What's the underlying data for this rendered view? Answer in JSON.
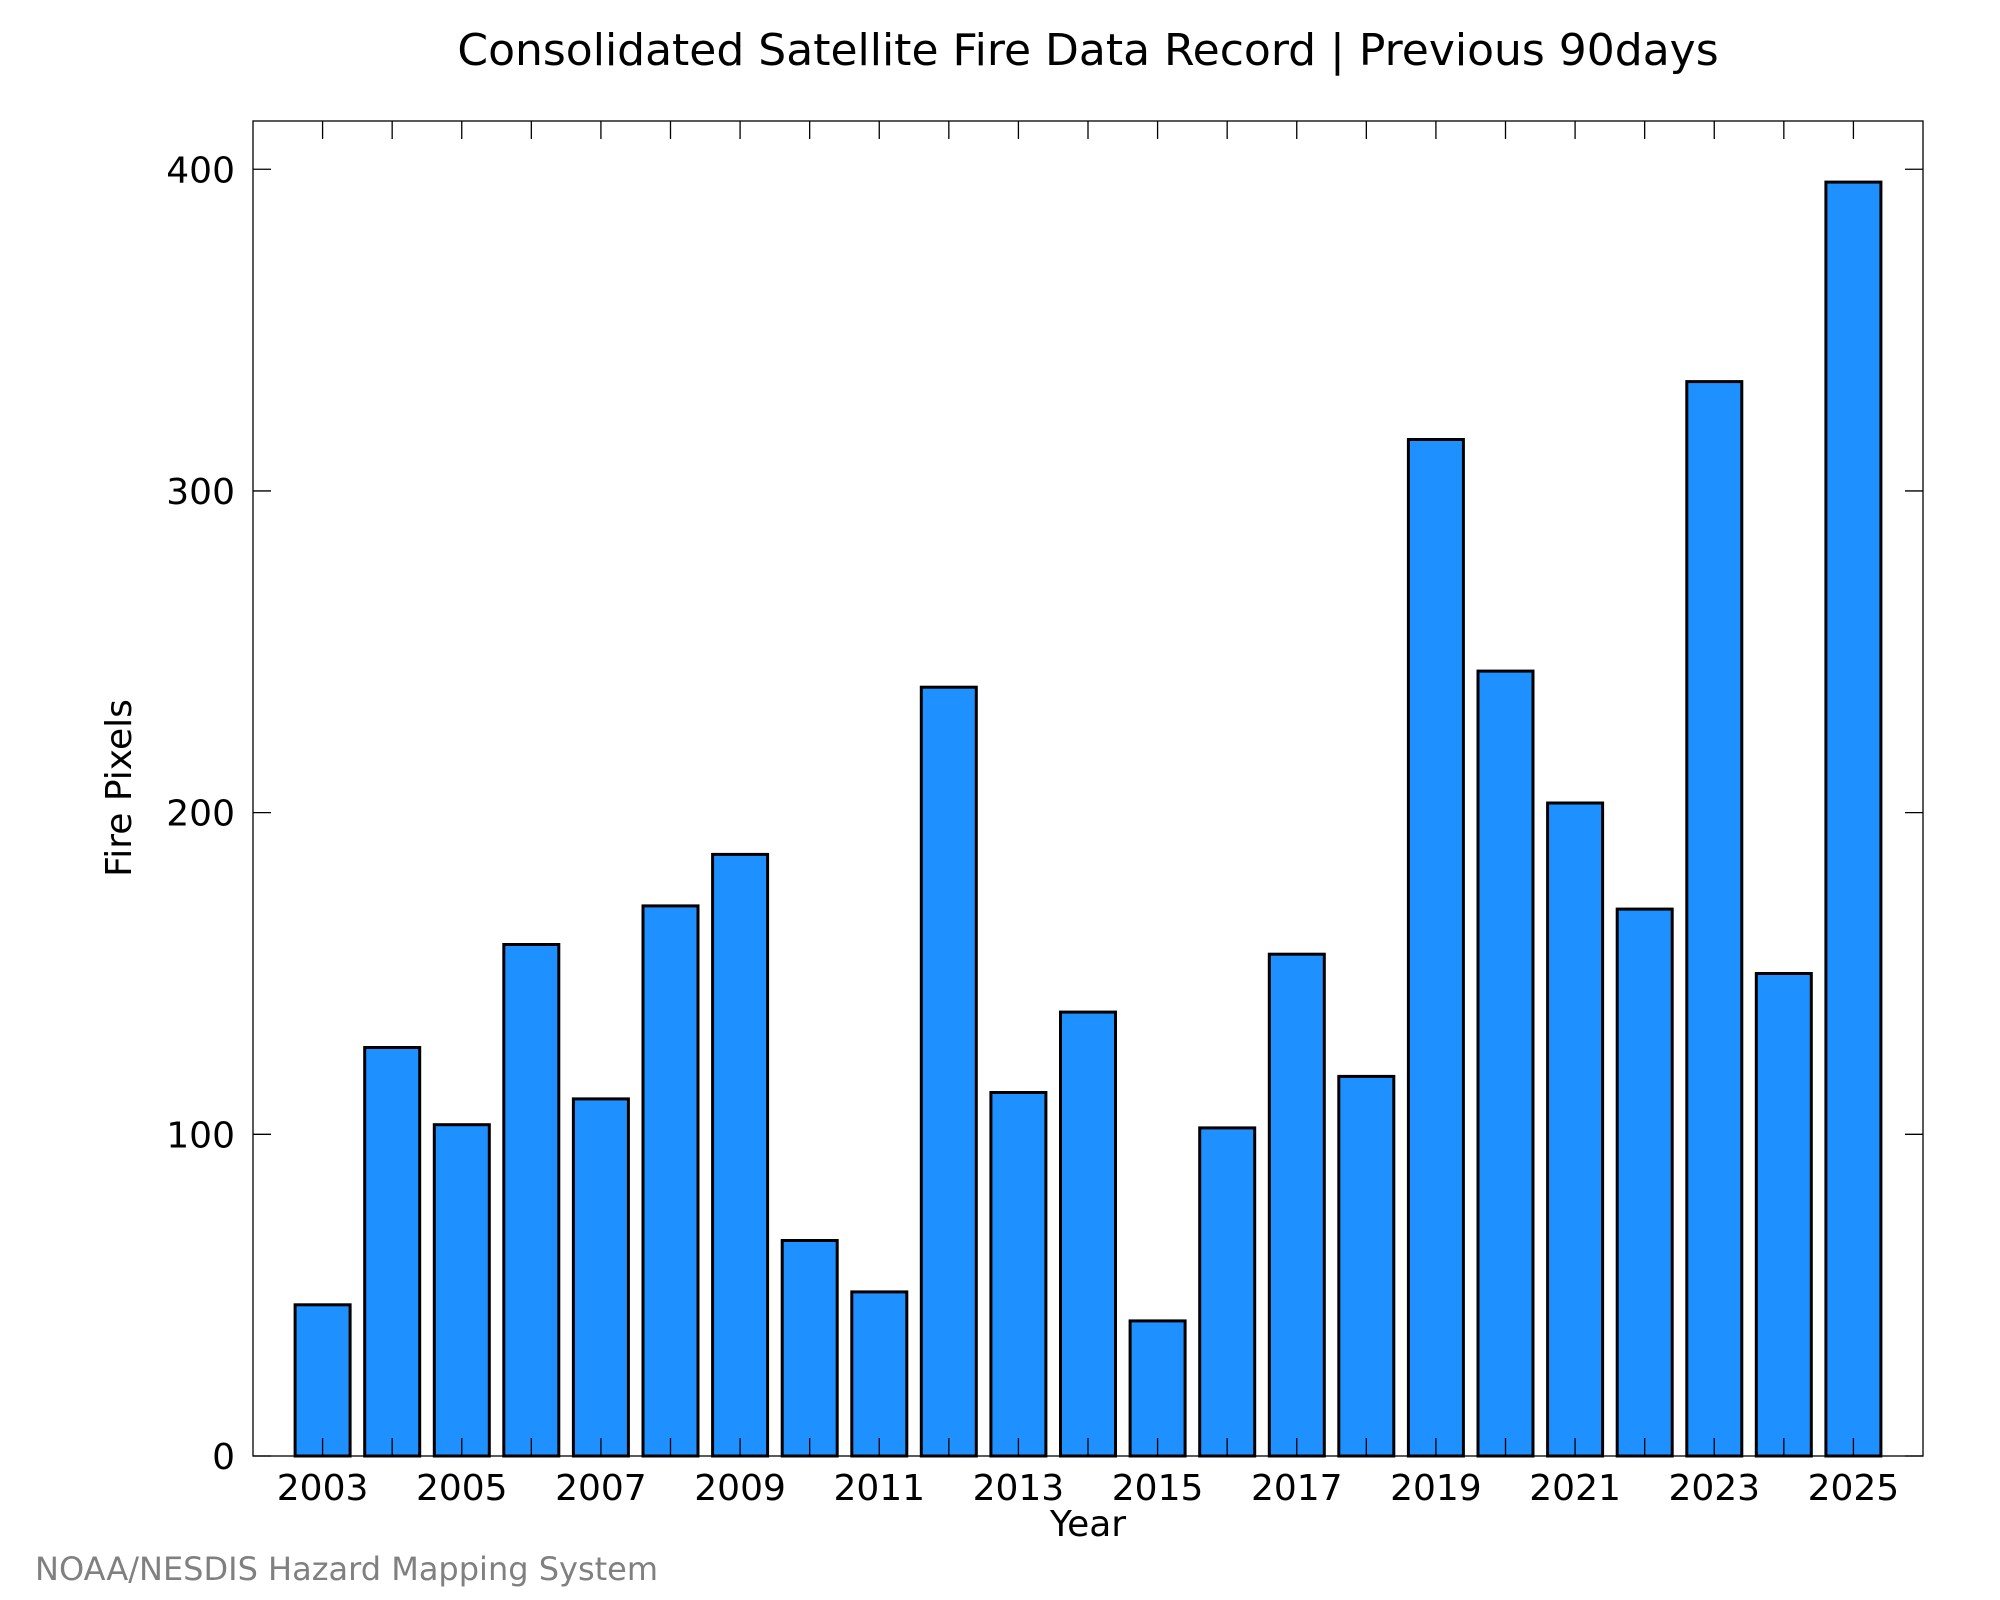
{
  "chart_data": {
    "type": "bar",
    "title": "Consolidated Satellite Fire Data Record | Previous 90days",
    "xlabel": "Year",
    "ylabel": "Fire Pixels",
    "categories": [
      "2003",
      "2004",
      "2005",
      "2006",
      "2007",
      "2008",
      "2009",
      "2010",
      "2011",
      "2012",
      "2013",
      "2014",
      "2015",
      "2016",
      "2017",
      "2018",
      "2019",
      "2020",
      "2021",
      "2022",
      "2023",
      "2024",
      "2025"
    ],
    "values": [
      47,
      127,
      103,
      159,
      111,
      171,
      187,
      67,
      51,
      239,
      113,
      138,
      42,
      102,
      156,
      118,
      316,
      244,
      203,
      170,
      334,
      150,
      396
    ],
    "ylim": [
      0,
      415
    ],
    "xlim": [
      2002,
      2026
    ],
    "yticks": [
      "0",
      "100",
      "200",
      "300",
      "400"
    ],
    "xticks": [
      "2003",
      "2005",
      "2007",
      "2009",
      "2011",
      "2013",
      "2015",
      "2017",
      "2019",
      "2021",
      "2023",
      "2025"
    ],
    "bar_color": "#1e90ff",
    "grid": false,
    "legend": "none",
    "credit": "NOAA/NESDIS Hazard Mapping System"
  }
}
